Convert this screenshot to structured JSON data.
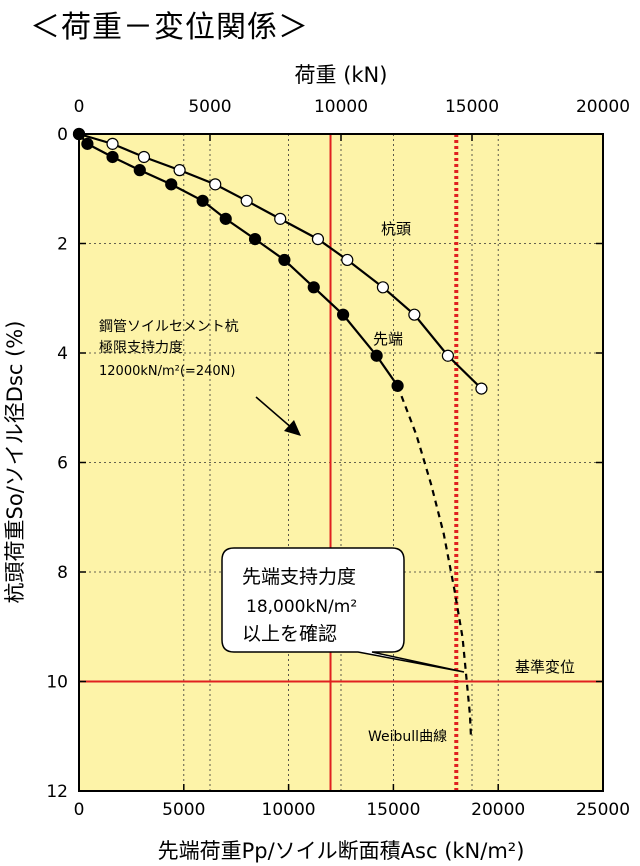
{
  "heading": "＜荷重－変位関係＞",
  "chart_data": {
    "type": "line",
    "top_axis": {
      "label": "荷重 (kN)",
      "range": [
        0,
        20000
      ],
      "ticks": [
        0,
        5000,
        10000,
        15000,
        20000
      ],
      "tick_labels": [
        "0",
        "5000",
        "10000",
        "15000",
        "20000"
      ]
    },
    "xlabel": "先端荷重Pp/ソイル断面積Asc (kN/m²)",
    "xlim": [
      0,
      25000
    ],
    "xticks": [
      0,
      5000,
      10000,
      15000,
      20000,
      25000
    ],
    "xtick_labels": [
      "0",
      "5000",
      "10000",
      "15000",
      "20000",
      "25000"
    ],
    "ylabel": "杭頭荷重So/ソイル径Dsc (%)",
    "ylim": [
      0,
      12
    ],
    "y_inverted": true,
    "yticks": [
      0,
      2,
      4,
      6,
      8,
      10,
      12
    ],
    "ytick_labels": [
      "0",
      "2",
      "4",
      "6",
      "8",
      "10",
      "12"
    ],
    "grid": "dotted",
    "background": "#fdf3a8",
    "series": [
      {
        "name": "杭頭",
        "marker": "open-circle",
        "color": "#000000",
        "points": [
          [
            0,
            0
          ],
          [
            1600,
            0.18
          ],
          [
            3100,
            0.42
          ],
          [
            4800,
            0.66
          ],
          [
            6500,
            0.92
          ],
          [
            8000,
            1.22
          ],
          [
            9600,
            1.55
          ],
          [
            11400,
            1.92
          ],
          [
            12800,
            2.3
          ],
          [
            14500,
            2.8
          ],
          [
            16000,
            3.3
          ],
          [
            17600,
            4.05
          ],
          [
            19200,
            4.65
          ]
        ]
      },
      {
        "name": "先端",
        "marker": "filled-circle",
        "color": "#000000",
        "points": [
          [
            0,
            0
          ],
          [
            400,
            0.18
          ],
          [
            1600,
            0.42
          ],
          [
            2900,
            0.66
          ],
          [
            4400,
            0.92
          ],
          [
            5900,
            1.22
          ],
          [
            7000,
            1.55
          ],
          [
            8400,
            1.92
          ],
          [
            9800,
            2.3
          ],
          [
            11200,
            2.8
          ],
          [
            12600,
            3.3
          ],
          [
            14200,
            4.05
          ],
          [
            15200,
            4.6
          ]
        ]
      },
      {
        "name": "Weibull曲線",
        "style": "dashed",
        "color": "#000000",
        "points": [
          [
            15200,
            4.6
          ],
          [
            16100,
            5.5
          ],
          [
            16800,
            6.4
          ],
          [
            17400,
            7.3
          ],
          [
            17900,
            8.3
          ],
          [
            18300,
            9.2
          ],
          [
            18500,
            10.0
          ],
          [
            18650,
            10.6
          ],
          [
            18700,
            11.0
          ]
        ]
      }
    ],
    "reference_lines": [
      {
        "orientation": "vertical",
        "x": 12000,
        "style": "solid",
        "color": "#e02020"
      },
      {
        "orientation": "vertical",
        "x": 18000,
        "style": "dotted",
        "color": "#e02020"
      },
      {
        "orientation": "horizontal",
        "y": 10,
        "style": "solid",
        "color": "#e02020"
      }
    ],
    "annotations": {
      "pile_head_label": "杭頭",
      "tip_label": "先端",
      "limit_line1": "鋼管ソイルセメント杭",
      "limit_line2": "極限支持力度",
      "limit_value": "12000kN/m²(=240N)",
      "baseline_label": "基準変位",
      "weibull_label": "Weibull曲線",
      "callout_line1": "先端支持力度",
      "callout_line2": "18,000kN/m²",
      "callout_line3": "以上を確認"
    }
  }
}
